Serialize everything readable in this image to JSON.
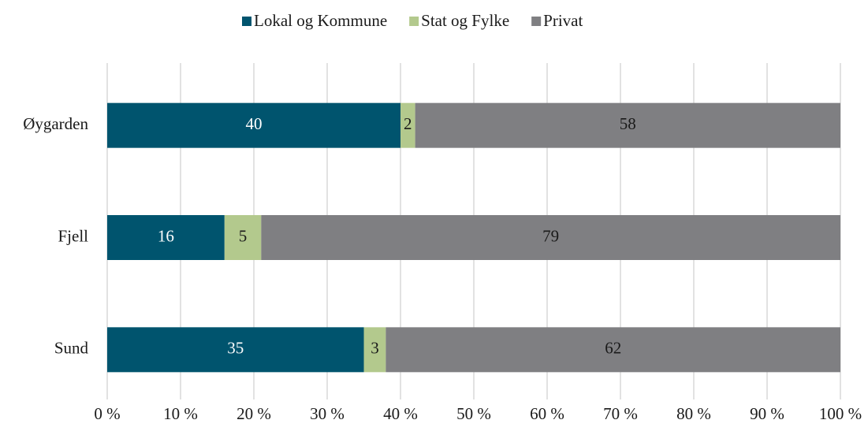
{
  "chart_data": {
    "type": "bar",
    "orientation": "horizontal",
    "stacked": true,
    "categories": [
      "Øygarden",
      "Fjell",
      "Sund"
    ],
    "series": [
      {
        "name": "Lokal og Kommune",
        "color": "#00546e",
        "values": [
          40,
          16,
          35
        ]
      },
      {
        "name": "Stat og Fylke",
        "color": "#b3c98d",
        "values": [
          2,
          5,
          3
        ]
      },
      {
        "name": "Privat",
        "color": "#7f7f82",
        "values": [
          58,
          79,
          62
        ]
      }
    ],
    "xlim": [
      0,
      100
    ],
    "xticks": [
      {
        "value": 0,
        "label": "0 %"
      },
      {
        "value": 10,
        "label": "10 %"
      },
      {
        "value": 20,
        "label": "20 %"
      },
      {
        "value": 30,
        "label": "30 %"
      },
      {
        "value": 40,
        "label": "40 %"
      },
      {
        "value": 50,
        "label": "50 %"
      },
      {
        "value": 60,
        "label": "60 %"
      },
      {
        "value": 70,
        "label": "70 %"
      },
      {
        "value": 80,
        "label": "80 %"
      },
      {
        "value": 90,
        "label": "90 %"
      },
      {
        "value": 100,
        "label": "100 %"
      }
    ],
    "grid": true,
    "legend": "top"
  }
}
